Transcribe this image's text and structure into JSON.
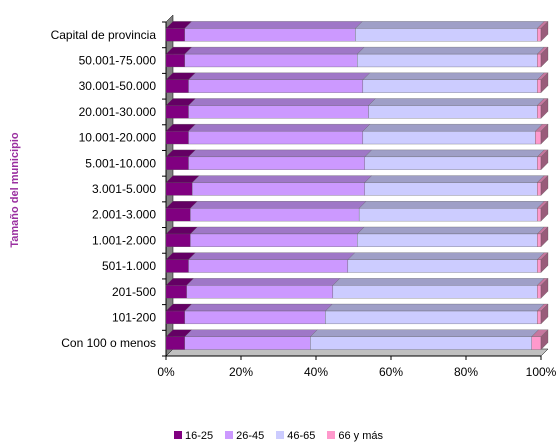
{
  "chart_data": {
    "type": "bar",
    "stacked": "percent",
    "orientation": "horizontal",
    "ylabel": "Tamaño del municipio",
    "categories": [
      "Capital de provincia",
      "50.001-75.000",
      "30.001-50.000",
      "20.001-30.000",
      "10.001-20.000",
      "5.001-10.000",
      "3.001-5.000",
      "2.001-3.000",
      "1.001-2.000",
      "501-1.000",
      "201-500",
      "101-200",
      "Con 100 o menos"
    ],
    "xlim": [
      0,
      100
    ],
    "xticks": [
      "0%",
      "20%",
      "40%",
      "60%",
      "80%",
      "100%"
    ],
    "series": [
      {
        "name": "16-25",
        "color": "#800080",
        "values": [
          5,
          5,
          6,
          6,
          6,
          6,
          7,
          6.5,
          6.5,
          6,
          5.5,
          5,
          5
        ]
      },
      {
        "name": "26-45",
        "color": "#cc99ff",
        "values": [
          45.5,
          46,
          46.5,
          48,
          46.5,
          47,
          46,
          45,
          44.5,
          42.5,
          39,
          37.5,
          33.5
        ]
      },
      {
        "name": "46-65",
        "color": "#ccccff",
        "values": [
          48.5,
          48,
          46.5,
          45,
          46,
          46,
          46,
          47.5,
          48,
          50.5,
          54.5,
          56.5,
          59
        ]
      },
      {
        "name": "66 y más",
        "color": "#ff99cc",
        "values": [
          1,
          1,
          1,
          1,
          1.5,
          1,
          1,
          1,
          1,
          1,
          1,
          1,
          2.5
        ]
      }
    ],
    "grid": false,
    "legend": "bottom"
  }
}
